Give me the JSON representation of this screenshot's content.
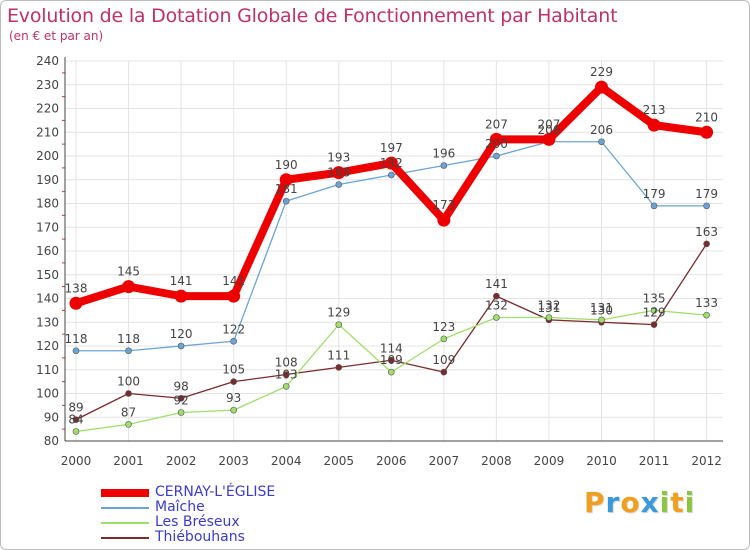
{
  "chart_data": {
    "type": "line",
    "title": "Evolution de la Dotation Globale de Fonctionnement par Habitant",
    "subtitle": "(en € et par an)",
    "xlabel": "",
    "ylabel": "",
    "ylim": [
      80,
      240
    ],
    "yticks": [
      80,
      90,
      100,
      110,
      120,
      130,
      140,
      150,
      160,
      170,
      180,
      190,
      200,
      210,
      220,
      230,
      240
    ],
    "categories": [
      "2000",
      "2001",
      "2002",
      "2003",
      "2004",
      "2005",
      "2006",
      "2007",
      "2008",
      "2009",
      "2010",
      "2011",
      "2012"
    ],
    "grid": true,
    "legend_position": "bottom-left",
    "series": [
      {
        "name": "CERNAY-L'ÉGLISE",
        "color": "#ee0000",
        "values": [
          138,
          145,
          141,
          141,
          190,
          193,
          197,
          173,
          207,
          207,
          229,
          213,
          210
        ]
      },
      {
        "name": "Maîche",
        "color": "#6aa4d6",
        "values": [
          118,
          118,
          120,
          122,
          181,
          188,
          192,
          196,
          200,
          206,
          206,
          179,
          179
        ]
      },
      {
        "name": "Les Bréseux",
        "color": "#9fde6a",
        "values": [
          84,
          87,
          92,
          93,
          103,
          129,
          109,
          123,
          132,
          132,
          131,
          135,
          133
        ]
      },
      {
        "name": "Thiébouhans",
        "color": "#7a2b2b",
        "values": [
          89,
          100,
          98,
          105,
          108,
          111,
          114,
          109,
          141,
          131,
          130,
          129,
          163
        ]
      }
    ]
  },
  "logo": {
    "letters": [
      "P",
      "r",
      "o",
      "x",
      "i",
      "t",
      "i"
    ],
    "colors": [
      "#f0a020",
      "#3a9ad9",
      "#f0a020",
      "#3a9ad9",
      "#8cc63f",
      "#f0a020",
      "#8cc63f"
    ]
  }
}
